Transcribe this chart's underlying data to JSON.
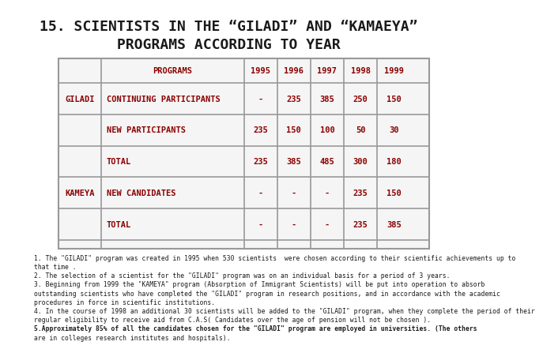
{
  "title_line1": "15. SCIENTISTS IN THE “GILADI” AND “KAMAEYA”",
  "title_line2": "PROGRAMS ACCORDING TO YEAR",
  "title_color": "#1a1a1a",
  "title_fontsize": 13,
  "table_border_color": "#999999",
  "header_text_color": "#8b0000",
  "cell_text_color": "#8b0000",
  "background_color": "#ffffff",
  "table_bg": "#f5f5f5",
  "rows": [
    [
      "GILADI",
      "CONTINUING PARTICIPANTS",
      "-",
      "235",
      "385",
      "250",
      "150"
    ],
    [
      "",
      "NEW PARTICIPANTS",
      "235",
      "150",
      "100",
      "50",
      "30"
    ],
    [
      "",
      "TOTAL",
      "235",
      "385",
      "485",
      "300",
      "180"
    ],
    [
      "KAMEYA",
      "NEW CANDIDATES",
      "-",
      "-",
      "-",
      "235",
      "150"
    ],
    [
      "",
      "TOTAL",
      "-",
      "-",
      "-",
      "235",
      "385"
    ]
  ],
  "footnotes": [
    [
      "normal",
      "1. The \"GILADI\" program was created in 1995 when 530 scientists  were chosen according to their scientific achievements up to"
    ],
    [
      "normal",
      "that time ."
    ],
    [
      "normal",
      "2. The selection of a scientist for the \"GILADI\" program was on an individual basis for a period of 3 years."
    ],
    [
      "normal",
      "3. Beginning from 1999 the \"KAMEYA\" program (Absorption of Immigrant Scientists) will be put into operation to absorb"
    ],
    [
      "normal",
      "outstanding scientists who have completed the \"GILADI\" program in research positions, and in accordance with the academic"
    ],
    [
      "normal",
      "procedures in force in scientific institutions."
    ],
    [
      "normal",
      "4. In the course of 1998 an additional 30 scientists will be added to the \"GILADI\" program, when they complete the period of their"
    ],
    [
      "normal",
      "regular eligibility to receive aid from C.A.S( Candidates over the age of pension will not be chosen )."
    ],
    [
      "bold",
      "5.Approximately 85% of all the candidates chosen for the \"GILADI\" program are employed in universities. (The others"
    ],
    [
      "normal",
      "are in colleges research institutes and hospitals)."
    ]
  ]
}
